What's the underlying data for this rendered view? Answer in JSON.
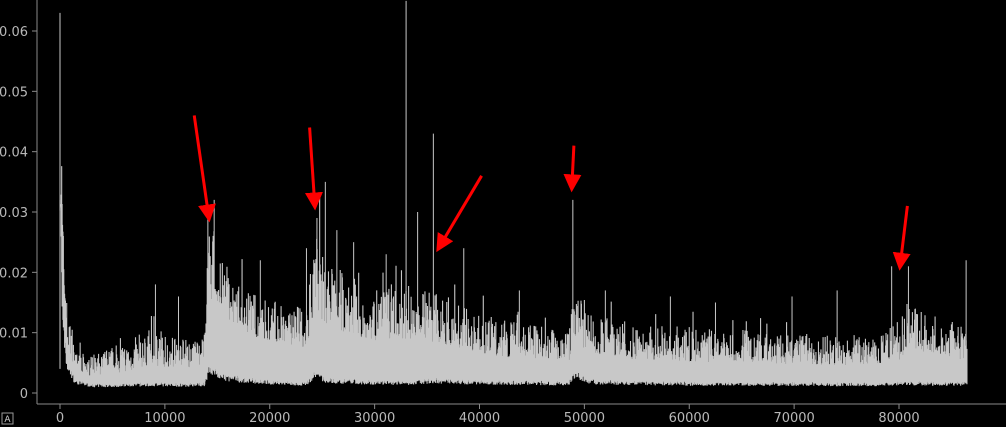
{
  "chart_data": {
    "type": "area",
    "title": "",
    "xlabel": "",
    "ylabel": "",
    "xlim": [
      -3000,
      87500
    ],
    "ylim": [
      -0.001,
      0.065
    ],
    "x_ticks": [
      0,
      10000,
      20000,
      30000,
      40000,
      50000,
      60000,
      70000,
      80000
    ],
    "x_tick_labels": [
      "0",
      "10000",
      "20000",
      "30000",
      "40000",
      "50000",
      "60000",
      "70000",
      "80000"
    ],
    "y_ticks": [
      0,
      0.01,
      0.02,
      0.03,
      0.04,
      0.05,
      0.06
    ],
    "y_tick_labels": [
      "0",
      "0.01",
      "0.02",
      "0.03",
      "0.04",
      "0.05",
      "0.06"
    ],
    "grid": false,
    "colors": {
      "background": "#000000",
      "series": "#c8c8c8",
      "annotation": "#ff0000",
      "axis": "#8a8a8a",
      "tick_text": "#b8b8b8"
    },
    "series": [
      {
        "x": [
          0,
          300,
          700,
          1500,
          3000,
          5000,
          9000,
          12000,
          13800,
          14200,
          15500,
          18000,
          21000,
          23500,
          24300,
          25500,
          30000,
          33000,
          35500,
          38000,
          42000,
          46000,
          48500,
          49000,
          50500,
          55000,
          60000,
          65000,
          70000,
          75000,
          78500,
          80000,
          81000,
          83000,
          86500
        ],
        "lower": [
          0.032,
          0.01,
          0.004,
          0.0018,
          0.0012,
          0.0012,
          0.0014,
          0.0013,
          0.0014,
          0.004,
          0.0025,
          0.002,
          0.0016,
          0.0015,
          0.003,
          0.002,
          0.0017,
          0.0016,
          0.002,
          0.0018,
          0.0017,
          0.0016,
          0.0015,
          0.003,
          0.0018,
          0.0016,
          0.0015,
          0.0015,
          0.0014,
          0.0014,
          0.0014,
          0.0016,
          0.0016,
          0.0015,
          0.0015
        ],
        "baseline": [
          0.032,
          0.02,
          0.008,
          0.0035,
          0.0028,
          0.0032,
          0.0045,
          0.004,
          0.0042,
          0.016,
          0.013,
          0.0095,
          0.008,
          0.0075,
          0.0135,
          0.011,
          0.0085,
          0.009,
          0.0085,
          0.0075,
          0.006,
          0.0055,
          0.005,
          0.009,
          0.0065,
          0.0055,
          0.0052,
          0.005,
          0.0048,
          0.0046,
          0.0048,
          0.0055,
          0.007,
          0.006,
          0.0055
        ],
        "upper": [
          0.063,
          0.028,
          0.014,
          0.007,
          0.006,
          0.008,
          0.011,
          0.009,
          0.009,
          0.03,
          0.022,
          0.017,
          0.015,
          0.014,
          0.028,
          0.023,
          0.017,
          0.018,
          0.017,
          0.015,
          0.0125,
          0.011,
          0.01,
          0.021,
          0.013,
          0.0115,
          0.011,
          0.0105,
          0.01,
          0.0095,
          0.01,
          0.012,
          0.0145,
          0.013,
          0.012
        ]
      }
    ],
    "spikes": [
      {
        "x": 0,
        "y": 0.063
      },
      {
        "x": 9100,
        "y": 0.018
      },
      {
        "x": 11300,
        "y": 0.016
      },
      {
        "x": 14100,
        "y": 0.031
      },
      {
        "x": 14700,
        "y": 0.032
      },
      {
        "x": 19100,
        "y": 0.022
      },
      {
        "x": 23500,
        "y": 0.024
      },
      {
        "x": 24500,
        "y": 0.029
      },
      {
        "x": 25300,
        "y": 0.035
      },
      {
        "x": 26400,
        "y": 0.027
      },
      {
        "x": 28000,
        "y": 0.025
      },
      {
        "x": 31100,
        "y": 0.023
      },
      {
        "x": 33000,
        "y": 0.065
      },
      {
        "x": 34100,
        "y": 0.03
      },
      {
        "x": 35600,
        "y": 0.043
      },
      {
        "x": 38500,
        "y": 0.024
      },
      {
        "x": 43800,
        "y": 0.017
      },
      {
        "x": 48900,
        "y": 0.032
      },
      {
        "x": 52000,
        "y": 0.017
      },
      {
        "x": 58200,
        "y": 0.016
      },
      {
        "x": 62500,
        "y": 0.015
      },
      {
        "x": 69800,
        "y": 0.016
      },
      {
        "x": 74100,
        "y": 0.017
      },
      {
        "x": 79300,
        "y": 0.021
      },
      {
        "x": 80900,
        "y": 0.021
      },
      {
        "x": 86400,
        "y": 0.022
      }
    ],
    "annotations": [
      {
        "type": "arrow",
        "from": [
          12800,
          0.046
        ],
        "to": [
          14200,
          0.029
        ]
      },
      {
        "type": "arrow",
        "from": [
          23800,
          0.044
        ],
        "to": [
          24300,
          0.031
        ]
      },
      {
        "type": "arrow",
        "from": [
          40200,
          0.036
        ],
        "to": [
          36100,
          0.024
        ]
      },
      {
        "type": "arrow",
        "from": [
          49000,
          0.041
        ],
        "to": [
          48800,
          0.034
        ]
      },
      {
        "type": "arrow",
        "from": [
          80800,
          0.031
        ],
        "to": [
          80100,
          0.021
        ]
      }
    ]
  },
  "auto_button": {
    "label": "A"
  }
}
